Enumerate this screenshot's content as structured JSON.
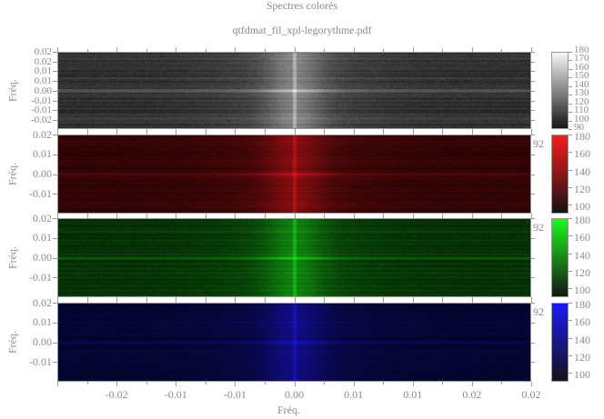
{
  "title": "Spectres colorés",
  "subtitle": "qtfdmat_fil_xpl-legorythme.pdf",
  "chart_data": [
    {
      "type": "heatmap",
      "colormap": "gray",
      "ylabel": "Fréq.",
      "yticks": [
        "0.02",
        "0.02",
        "0.01",
        "0.01",
        "0.00",
        "-0.01",
        "-0.01",
        "-0.02"
      ],
      "colorbar_ticks": [
        "180",
        "170",
        "160",
        "150",
        "140",
        "130",
        "120",
        "110",
        "100",
        "90"
      ],
      "colorbar_range": [
        90,
        180
      ],
      "clipped_label": ""
    },
    {
      "type": "heatmap",
      "colormap": "red",
      "color": "#ff1010",
      "ylabel": "Fréq.",
      "yticks": [
        "0.02",
        "0.01",
        "0.00",
        "-0.01"
      ],
      "colorbar_ticks": [
        "180",
        "160",
        "140",
        "120",
        "100"
      ],
      "colorbar_range": [
        90,
        180
      ],
      "clipped_label": "92"
    },
    {
      "type": "heatmap",
      "colormap": "green",
      "color": "#10ff10",
      "ylabel": "Fréq.",
      "yticks": [
        "0.02",
        "0.01",
        "0.00",
        "-0.01"
      ],
      "colorbar_ticks": [
        "180",
        "160",
        "140",
        "120",
        "100"
      ],
      "colorbar_range": [
        90,
        180
      ],
      "clipped_label": "92"
    },
    {
      "type": "heatmap",
      "colormap": "blue",
      "color": "#1010ff",
      "ylabel": "Fréq.",
      "yticks": [
        "0.02",
        "0.01",
        "0.00",
        "-0.01"
      ],
      "colorbar_ticks": [
        "180",
        "160",
        "140",
        "120",
        "100"
      ],
      "colorbar_range": [
        90,
        180
      ],
      "clipped_label": "92"
    }
  ],
  "xaxis": {
    "label": "Fréq.",
    "ticks": [
      "-0.02",
      "-0.01",
      "-0.01",
      "0.00",
      "0.01",
      "0.01",
      "0.02",
      "0.02"
    ]
  }
}
